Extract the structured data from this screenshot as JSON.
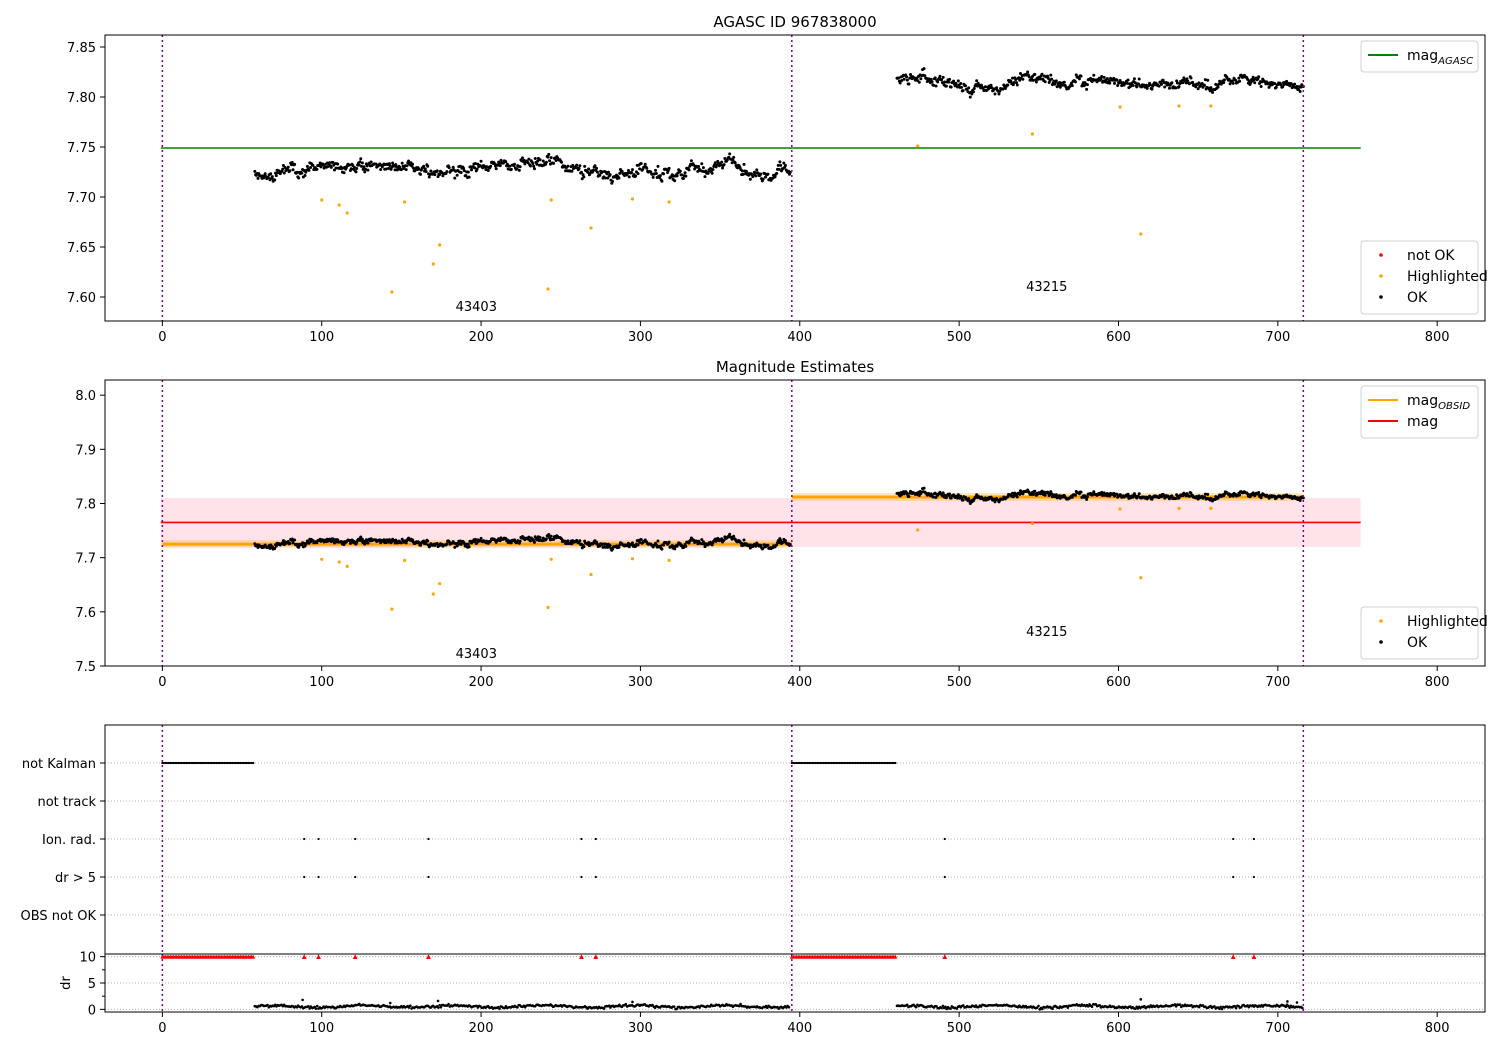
{
  "chart_data": [
    {
      "type": "scatter",
      "title": "AGASC ID 967838000",
      "xlim": [
        -36,
        830
      ],
      "ylim": [
        7.576,
        7.862
      ],
      "x_ticks": [
        0,
        100,
        200,
        300,
        400,
        500,
        600,
        700,
        800
      ],
      "y_ticks": [
        7.6,
        7.65,
        7.7,
        7.75,
        7.8,
        7.85
      ],
      "y_tick_labels": [
        "7.60",
        "7.65",
        "7.70",
        "7.75",
        "7.80",
        "7.85"
      ],
      "vlines": [
        0,
        395,
        716
      ],
      "hlines": [
        {
          "name": "mag",
          "name_sub": "AGASC",
          "y": 7.749,
          "x0": -1,
          "x1": 752,
          "color": "#008000"
        }
      ],
      "annotations": [
        {
          "text": "43403",
          "x": 197,
          "y": 7.586
        },
        {
          "text": "43215",
          "x": 555,
          "y": 7.606
        }
      ],
      "legends": [
        {
          "position": "top-right",
          "items": [
            {
              "label": "mag",
              "sub": "AGASC",
              "kind": "line",
              "color": "#008000"
            }
          ]
        },
        {
          "position": "bottom-right",
          "items": [
            {
              "label": "not OK",
              "kind": "dot",
              "color": "#ff0000"
            },
            {
              "label": "Highlighted",
              "kind": "dot",
              "color": "#ffa500"
            },
            {
              "label": "OK",
              "kind": "dot",
              "color": "#000000"
            }
          ]
        }
      ],
      "segments": [
        {
          "x0": 58,
          "x1": 394,
          "y0": 7.728,
          "amplitude": 0.008,
          "noise": 0.004,
          "seed": 11
        },
        {
          "x0": 461,
          "x1": 716,
          "y0": 7.814,
          "amplitude": 0.007,
          "noise": 0.004,
          "seed": 29
        }
      ],
      "highlighted": [
        [
          100,
          7.697
        ],
        [
          111,
          7.692
        ],
        [
          116,
          7.684
        ],
        [
          144,
          7.605
        ],
        [
          152,
          7.695
        ],
        [
          170,
          7.633
        ],
        [
          174,
          7.652
        ],
        [
          242,
          7.608
        ],
        [
          244,
          7.697
        ],
        [
          269,
          7.669
        ],
        [
          295,
          7.698
        ],
        [
          318,
          7.695
        ],
        [
          474,
          7.751
        ],
        [
          546,
          7.763
        ],
        [
          601,
          7.79
        ],
        [
          614,
          7.663
        ],
        [
          638,
          7.791
        ],
        [
          658,
          7.791
        ]
      ],
      "not_ok": []
    },
    {
      "type": "scatter",
      "title": "Magnitude Estimates",
      "xlim": [
        -36,
        830
      ],
      "ylim": [
        7.5,
        8.028
      ],
      "x_ticks": [
        0,
        100,
        200,
        300,
        400,
        500,
        600,
        700,
        800
      ],
      "y_ticks": [
        7.5,
        7.6,
        7.7,
        7.8,
        7.9,
        8.0
      ],
      "y_tick_labels": [
        "7.5",
        "7.6",
        "7.7",
        "7.8",
        "7.9",
        "8.0"
      ],
      "vlines": [
        0,
        395,
        716
      ],
      "band": {
        "y0": 7.72,
        "y1": 7.81,
        "x0": -1,
        "x1": 752,
        "color": "#ffc0cb"
      },
      "hlines": [
        {
          "name": "mag",
          "y": 7.765,
          "x0": -1,
          "x1": 752,
          "color": "#ff0000"
        },
        {
          "name": "mag",
          "name_sub": "OBSID",
          "y": 7.725,
          "x0": 0,
          "x1": 395,
          "color": "#ffa500",
          "width": 3
        },
        {
          "name": "mag",
          "name_sub": "OBSID",
          "y": 7.812,
          "x0": 395,
          "x1": 716,
          "color": "#ffa500",
          "width": 3
        }
      ],
      "annotations": [
        {
          "text": "43403",
          "x": 197,
          "y": 7.515
        },
        {
          "text": "43215",
          "x": 555,
          "y": 7.555
        }
      ],
      "legends": [
        {
          "position": "top-right",
          "items": [
            {
              "label": "mag",
              "sub": "OBSID",
              "kind": "line",
              "color": "#ffa500"
            },
            {
              "label": "mag",
              "kind": "line",
              "color": "#ff0000"
            }
          ]
        },
        {
          "position": "bottom-right",
          "items": [
            {
              "label": "Highlighted",
              "kind": "dot",
              "color": "#ffa500"
            },
            {
              "label": "OK",
              "kind": "dot",
              "color": "#000000"
            }
          ]
        }
      ],
      "segments": [
        {
          "x0": 58,
          "x1": 394,
          "y0": 7.728,
          "amplitude": 0.008,
          "noise": 0.004,
          "seed": 11
        },
        {
          "x0": 461,
          "x1": 716,
          "y0": 7.814,
          "amplitude": 0.007,
          "noise": 0.004,
          "seed": 29
        }
      ],
      "highlighted": [
        [
          100,
          7.697
        ],
        [
          111,
          7.692
        ],
        [
          116,
          7.684
        ],
        [
          144,
          7.605
        ],
        [
          152,
          7.695
        ],
        [
          170,
          7.633
        ],
        [
          174,
          7.652
        ],
        [
          242,
          7.608
        ],
        [
          244,
          7.697
        ],
        [
          269,
          7.669
        ],
        [
          295,
          7.698
        ],
        [
          318,
          7.695
        ],
        [
          474,
          7.751
        ],
        [
          546,
          7.763
        ],
        [
          601,
          7.79
        ],
        [
          614,
          7.663
        ],
        [
          638,
          7.791
        ],
        [
          658,
          7.791
        ]
      ]
    },
    {
      "type": "scatter",
      "xlim": [
        -36,
        830
      ],
      "x_ticks": [
        0,
        100,
        200,
        300,
        400,
        500,
        600,
        700,
        800
      ],
      "vlines": [
        0,
        395,
        716
      ],
      "flag_rows": [
        {
          "label": "not Kalman",
          "points": {
            "ranges": [
              [
                0,
                57
              ],
              [
                395,
                460
              ]
            ]
          }
        },
        {
          "label": "not track",
          "points": []
        },
        {
          "label": "Ion. rad.",
          "points": [
            89,
            98,
            121,
            167,
            263,
            272,
            491,
            672,
            685
          ]
        },
        {
          "label": "dr > 5",
          "points": [
            89,
            98,
            121,
            167,
            263,
            272,
            491,
            672,
            685
          ]
        },
        {
          "label": "OBS not OK",
          "points": []
        }
      ],
      "dr": {
        "ylabel": "dr",
        "ylim": [
          -0.5,
          10.5
        ],
        "y_ticks": [
          0,
          5,
          10
        ],
        "y_tick_labels": [
          "0",
          "5",
          "10"
        ],
        "clipped_at": 10,
        "clipped_color": "#ff0000",
        "clipped_ranges": [
          [
            0,
            57
          ],
          [
            395,
            460
          ]
        ],
        "clipped_points": [
          89,
          98,
          121,
          167,
          263,
          272,
          491,
          672,
          685
        ],
        "segments": [
          {
            "x0": 58,
            "x1": 394,
            "seed": 5
          },
          {
            "x0": 461,
            "x1": 716,
            "seed": 17
          }
        ],
        "spikes": [
          [
            88,
            1.8
          ],
          [
            143,
            1.2
          ],
          [
            173,
            1.6
          ],
          [
            295,
            1.4
          ],
          [
            614,
            1.9
          ],
          [
            706,
            1.5
          ],
          [
            712,
            1.3
          ]
        ]
      }
    }
  ]
}
